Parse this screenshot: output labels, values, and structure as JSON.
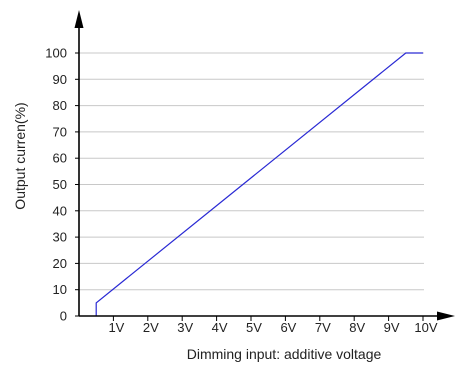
{
  "chart_data": {
    "type": "line",
    "title": "",
    "xlabel": "Dimming input: additive voltage",
    "ylabel": "Output curren(%)",
    "x_tick_labels": [
      "1V",
      "2V",
      "3V",
      "4V",
      "5V",
      "6V",
      "7V",
      "8V",
      "9V",
      "10V"
    ],
    "x_tick_values": [
      1,
      2,
      3,
      4,
      5,
      6,
      7,
      8,
      9,
      10
    ],
    "y_tick_labels": [
      "0",
      "10",
      "20",
      "30",
      "40",
      "50",
      "60",
      "70",
      "80",
      "90",
      "100"
    ],
    "y_tick_values": [
      0,
      10,
      20,
      30,
      40,
      50,
      60,
      70,
      80,
      90,
      100
    ],
    "xlim": [
      0,
      10
    ],
    "ylim": [
      0,
      100
    ],
    "grid": "horizontal",
    "series": [
      {
        "x": [
          0.5,
          0.5,
          9.5,
          10
        ],
        "y": [
          0,
          5,
          100,
          100
        ],
        "color": "#2a2ad4"
      }
    ],
    "colors": {
      "axis": "#000000",
      "grid": "#c8c8c8",
      "line": "#2a2ad4"
    }
  }
}
